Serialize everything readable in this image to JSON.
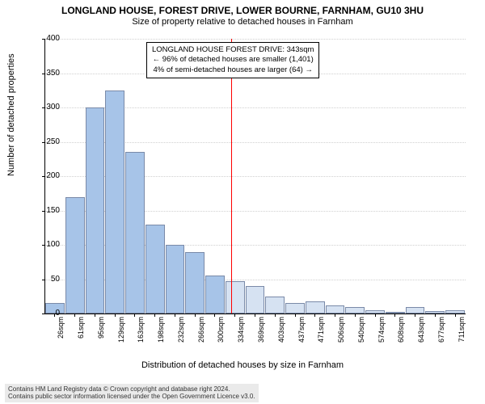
{
  "title": "LONGLAND HOUSE, FOREST DRIVE, LOWER BOURNE, FARNHAM, GU10 3HU",
  "subtitle": "Size of property relative to detached houses in Farnham",
  "ylabel": "Number of detached properties",
  "xlabel": "Distribution of detached houses by size in Farnham",
  "chart": {
    "type": "histogram",
    "ylim": [
      0,
      400
    ],
    "ytick_step": 50,
    "yticks": [
      0,
      50,
      100,
      150,
      200,
      250,
      300,
      350,
      400
    ],
    "xticks": [
      "26sqm",
      "61sqm",
      "95sqm",
      "129sqm",
      "163sqm",
      "198sqm",
      "232sqm",
      "266sqm",
      "300sqm",
      "334sqm",
      "369sqm",
      "403sqm",
      "437sqm",
      "471sqm",
      "506sqm",
      "540sqm",
      "574sqm",
      "608sqm",
      "643sqm",
      "677sqm",
      "711sqm"
    ],
    "values": [
      15,
      170,
      300,
      325,
      235,
      130,
      100,
      90,
      55,
      47,
      40,
      25,
      15,
      18,
      12,
      10,
      5,
      2,
      10,
      3,
      5
    ],
    "bar_fill": "#d6e2f2",
    "bar_border": "#7a8aa8",
    "highlight_fill": "#a7c4e8",
    "grid_color": "#d0d0d0",
    "background": "#ffffff",
    "title_fontsize": 12,
    "label_fontsize": 11,
    "tick_fontsize": 10,
    "marker_line_color": "#ff0000",
    "marker_position_index": 9.3
  },
  "annotation": {
    "line1": "LONGLAND HOUSE FOREST DRIVE: 343sqm",
    "line2": "← 96% of detached houses are smaller (1,401)",
    "line3": "4% of semi-detached houses are larger (64) →"
  },
  "footer": {
    "line1": "Contains HM Land Registry data © Crown copyright and database right 2024.",
    "line2": "Contains public sector information licensed under the Open Government Licence v3.0."
  }
}
